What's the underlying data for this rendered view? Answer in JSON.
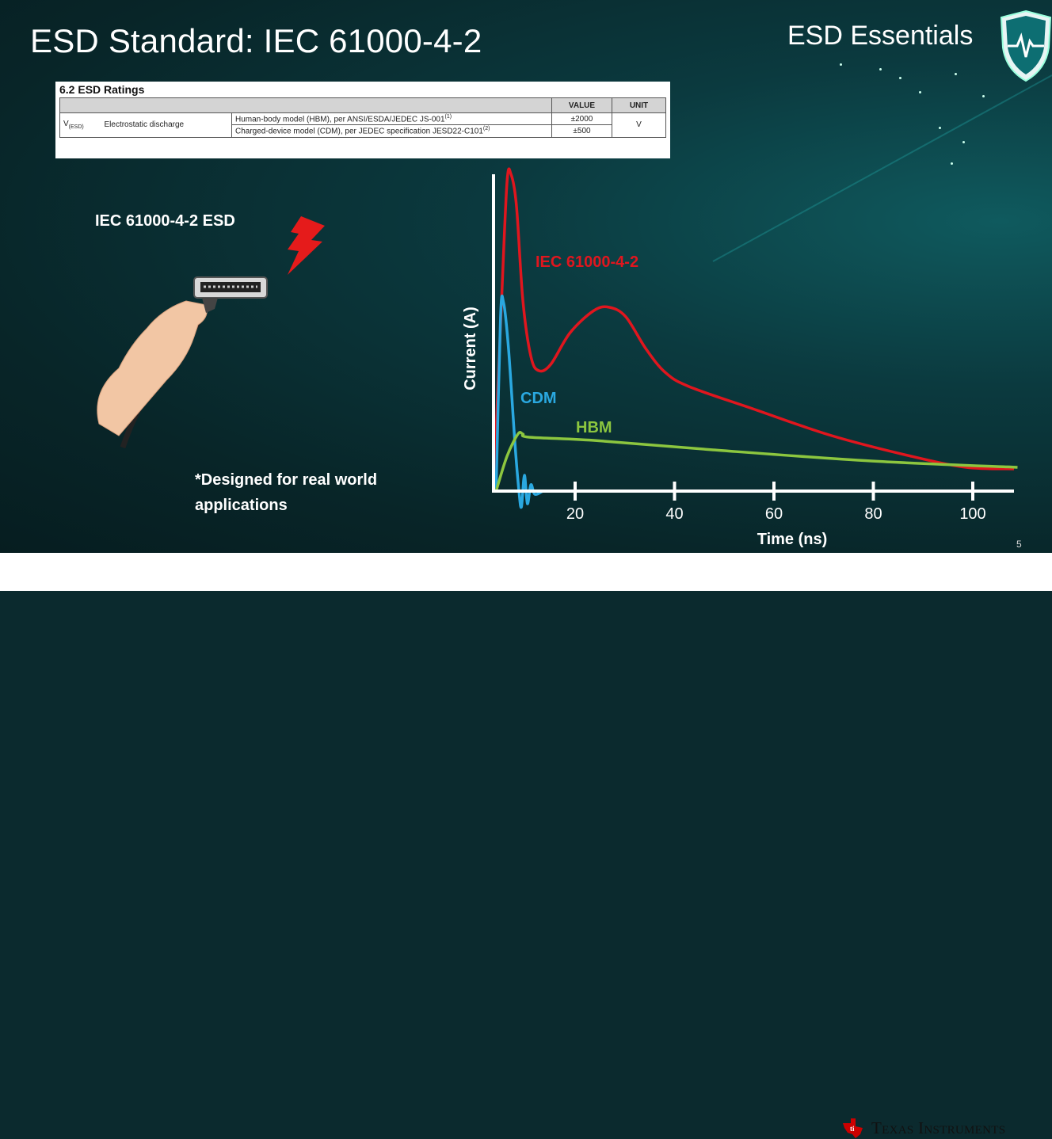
{
  "slide": {
    "title": "ESD Standard: IEC 61000-4-2",
    "brand": "ESD Essentials",
    "page_number": "5",
    "footer_logo": "Texas Instruments",
    "illustration_label": "IEC 61000-4-2 ESD",
    "note_line1": "*Designed for real world",
    "note_line2": "applications"
  },
  "table": {
    "title": "6.2   ESD Ratings",
    "headers": [
      "",
      "VALUE",
      "UNIT"
    ],
    "symbol": "V",
    "symbol_sub": "(ESD)",
    "parameter": "Electrostatic discharge",
    "rows": [
      {
        "condition": "Human-body model (HBM), per ANSI/ESDA/JEDEC JS-001",
        "footnote": "(1)",
        "value": "±2000"
      },
      {
        "condition": "Charged-device model (CDM), per JEDEC specification JESD22-C101",
        "footnote": "(2)",
        "value": "±500"
      }
    ],
    "unit": "V"
  },
  "chart_data": {
    "type": "line",
    "xlabel": "Time (ns)",
    "ylabel": "Current (A)",
    "xticks": [
      20,
      40,
      60,
      80,
      100
    ],
    "xlim": [
      3.6,
      110
    ],
    "ylim": [
      -0.1,
      1.0
    ],
    "grid": false,
    "legend": "inline labels",
    "series": [
      {
        "name": "IEC 61000-4-2",
        "color": "#e0161e",
        "x": [
          3.6,
          5.2,
          6.3,
          7.1,
          8.2,
          9.5,
          11.1,
          12.7,
          15.1,
          19,
          23.8,
          26.9,
          30.2,
          34.2,
          38.1,
          42.9,
          55.7,
          71.6,
          87.6,
          98.7,
          108.3
        ],
        "y": [
          0,
          0.6,
          0.975,
          1.0,
          0.9,
          0.6,
          0.425,
          0.38,
          0.4,
          0.5,
          0.57,
          0.58,
          0.55,
          0.45,
          0.375,
          0.33,
          0.26,
          0.175,
          0.11,
          0.075,
          0.07
        ]
      },
      {
        "name": "CDM",
        "color": "#2aa8e0",
        "x": [
          4.1,
          5.0,
          5.6,
          6.6,
          7.9,
          8.7,
          9.2,
          9.8,
          10.4,
          11.1,
          11.9,
          13.5
        ],
        "y": [
          0,
          0.55,
          0.595,
          0.45,
          0.15,
          0,
          -0.05,
          0.05,
          -0.04,
          0.02,
          -0.01,
          0
        ]
      },
      {
        "name": "HBM",
        "color": "#8cc63f",
        "x": [
          4.1,
          6.3,
          8.5,
          9.5,
          10.8,
          23.8,
          47.8,
          79.6,
          109
        ],
        "y": [
          0,
          0.11,
          0.18,
          0.18,
          0.17,
          0.16,
          0.13,
          0.095,
          0.075
        ]
      }
    ]
  }
}
